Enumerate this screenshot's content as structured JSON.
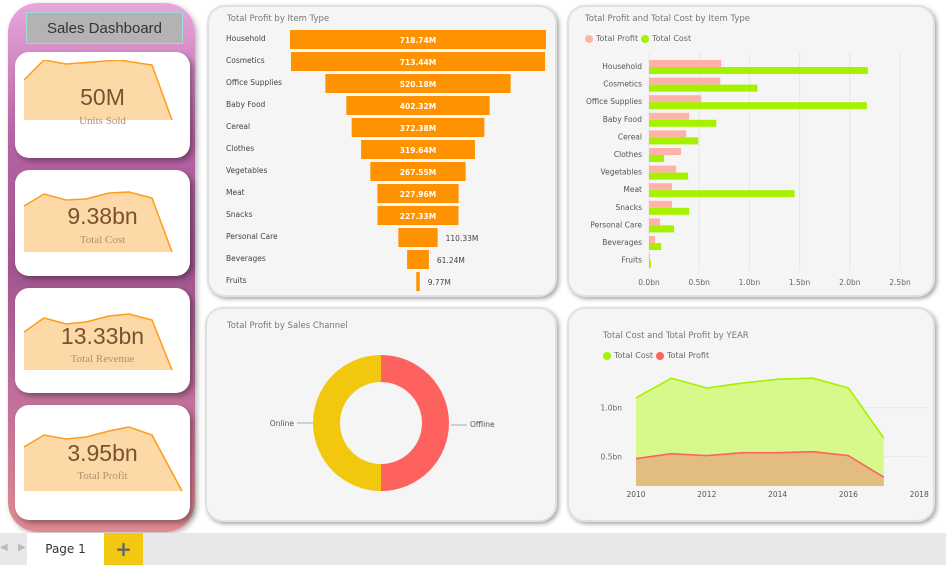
{
  "sidebar": {
    "title": "Sales Dashboard",
    "cards": [
      {
        "value": "50M",
        "label": "Units Sold"
      },
      {
        "value": "9.38bn",
        "label": "Total Cost"
      },
      {
        "value": "13.33bn",
        "label": "Total Revenue"
      },
      {
        "value": "3.95bn",
        "label": "Total Profit"
      }
    ]
  },
  "tabs": {
    "page": "Page 1",
    "add": "+"
  },
  "colors": {
    "profit": "#fd625e",
    "profit_light": "#ffb3a6",
    "cost": "#a6f100",
    "funnel": "#ff9200",
    "online": "#f2c80f",
    "kpi_fill": "#fdd9a8"
  },
  "chart_data": [
    {
      "type": "bar",
      "title": "Total Profit by Item Type",
      "style": "funnel",
      "categories": [
        "Household",
        "Cosmetics",
        "Office Supplies",
        "Baby Food",
        "Cereal",
        "Clothes",
        "Vegetables",
        "Meat",
        "Snacks",
        "Personal Care",
        "Beverages",
        "Fruits"
      ],
      "values": [
        718.74,
        713.44,
        520.18,
        402.32,
        372.38,
        319.64,
        267.55,
        227.96,
        227.33,
        110.33,
        61.24,
        9.77
      ],
      "labels": [
        "718.74M",
        "713.44M",
        "520.18M",
        "402.32M",
        "372.38M",
        "319.64M",
        "267.55M",
        "227.96M",
        "227.33M",
        "110.33M",
        "61.24M",
        "9.77M"
      ]
    },
    {
      "type": "bar",
      "title": "Total Profit and Total Cost by Item Type",
      "orientation": "horizontal",
      "legend": "top-left",
      "categories": [
        "Household",
        "Cosmetics",
        "Office Supplies",
        "Baby Food",
        "Cereal",
        "Clothes",
        "Vegetables",
        "Meat",
        "Snacks",
        "Personal Care",
        "Beverages",
        "Fruits"
      ],
      "series": [
        {
          "name": "Total Profit",
          "values": [
            0.72,
            0.71,
            0.52,
            0.4,
            0.37,
            0.32,
            0.27,
            0.23,
            0.23,
            0.11,
            0.06,
            0.01
          ]
        },
        {
          "name": "Total Cost",
          "values": [
            2.18,
            1.08,
            2.17,
            0.67,
            0.49,
            0.15,
            0.39,
            1.45,
            0.4,
            0.25,
            0.12,
            0.02
          ]
        }
      ],
      "xlim": [
        0,
        2.5
      ],
      "xticks": [
        "0.0bn",
        "0.5bn",
        "1.0bn",
        "1.5bn",
        "2.0bn",
        "2.5bn"
      ],
      "grid": true
    },
    {
      "type": "pie",
      "title": "Total Profit by Sales Channel",
      "donut": true,
      "categories": [
        "Offline",
        "Online"
      ],
      "values": [
        50,
        50
      ]
    },
    {
      "type": "area",
      "title": "Total Cost and Total Profit by YEAR",
      "legend": "top-left",
      "x": [
        2010,
        2011,
        2012,
        2013,
        2014,
        2015,
        2016,
        2017
      ],
      "series": [
        {
          "name": "Total Cost",
          "values": [
            1.1,
            1.3,
            1.2,
            1.25,
            1.29,
            1.3,
            1.2,
            0.69
          ]
        },
        {
          "name": "Total Profit",
          "values": [
            0.48,
            0.53,
            0.51,
            0.54,
            0.54,
            0.55,
            0.51,
            0.29
          ]
        }
      ],
      "ylim": [
        0.2,
        1.4
      ],
      "yticks": [
        "0.5bn",
        "1.0bn"
      ],
      "xticks": [
        "2010",
        "2012",
        "2014",
        "2016",
        "2018"
      ],
      "xlim": [
        2010,
        2018
      ],
      "grid": true
    }
  ]
}
